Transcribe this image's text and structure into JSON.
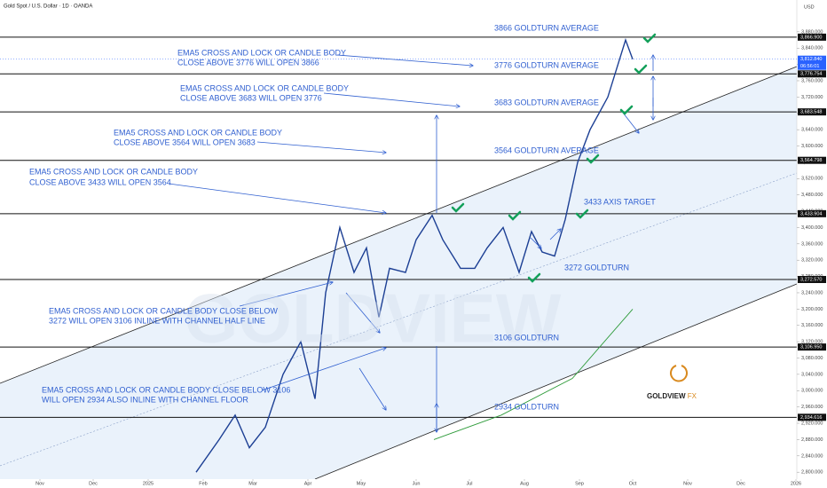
{
  "chart_data": {
    "type": "line",
    "title": "Gold Spot / U.S. Dollar · 1D · OANDA",
    "currency": "USD",
    "xlim": [
      -22.5,
      426.5
    ],
    "xticks": [
      {
        "value": 0,
        "label": "Nov"
      },
      {
        "value": 30,
        "label": "Dec"
      },
      {
        "value": 61,
        "label": "2025"
      },
      {
        "value": 92,
        "label": "Feb"
      },
      {
        "value": 120,
        "label": "Mar"
      },
      {
        "value": 151,
        "label": "Apr"
      },
      {
        "value": 181,
        "label": "May"
      },
      {
        "value": 212,
        "label": "Jun"
      },
      {
        "value": 242,
        "label": "Jul"
      },
      {
        "value": 273,
        "label": "Aug"
      },
      {
        "value": 304,
        "label": "Sep"
      },
      {
        "value": 334,
        "label": "Oct"
      },
      {
        "value": 365,
        "label": "Nov"
      },
      {
        "value": 395,
        "label": "Dec"
      },
      {
        "value": 426,
        "label": "2026"
      }
    ],
    "ylim": [
      2783,
      3958
    ],
    "yticks": [
      {
        "value": 2800,
        "label": "2,800.000"
      },
      {
        "value": 2840,
        "label": "2,840.000"
      },
      {
        "value": 2880,
        "label": "2,880.000"
      },
      {
        "value": 2920,
        "label": "2,920.000"
      },
      {
        "value": 2960,
        "label": "2,960.000"
      },
      {
        "value": 3000,
        "label": "3,000.000"
      },
      {
        "value": 3040,
        "label": "3,040.000"
      },
      {
        "value": 3080,
        "label": "3,080.000"
      },
      {
        "value": 3120,
        "label": "3,120.000"
      },
      {
        "value": 3160,
        "label": "3,160.000"
      },
      {
        "value": 3200,
        "label": "3,200.000"
      },
      {
        "value": 3240,
        "label": "3,240.000"
      },
      {
        "value": 3280,
        "label": "3,280.000"
      },
      {
        "value": 3320,
        "label": "3,320.000"
      },
      {
        "value": 3360,
        "label": "3,360.000"
      },
      {
        "value": 3400,
        "label": "3,400.000"
      },
      {
        "value": 3440,
        "label": "3,440.000"
      },
      {
        "value": 3480,
        "label": "3,480.000"
      },
      {
        "value": 3520,
        "label": "3,520.000"
      },
      {
        "value": 3560,
        "label": "3,560.000"
      },
      {
        "value": 3600,
        "label": "3,600.000"
      },
      {
        "value": 3640,
        "label": "3,640.000"
      },
      {
        "value": 3680,
        "label": "3,680.000"
      },
      {
        "value": 3720,
        "label": "3,720.000"
      },
      {
        "value": 3760,
        "label": "3,760.000"
      },
      {
        "value": 3800,
        "label": "3,800.000"
      },
      {
        "value": 3840,
        "label": "3,840.000"
      },
      {
        "value": 3880,
        "label": "3,880.000"
      }
    ],
    "series": [
      {
        "color": "#1c3f94",
        "x": [
          88,
          101,
          110,
          118,
          127,
          137,
          147,
          155,
          161,
          169,
          177,
          184,
          191,
          197,
          206,
          212,
          221,
          227,
          237,
          245,
          252,
          261,
          270,
          277,
          283,
          290,
          296,
          303,
          310,
          320,
          330,
          334
        ],
        "values": [
          2800,
          2880,
          2940,
          2860,
          2910,
          3040,
          3120,
          2980,
          3240,
          3400,
          3290,
          3350,
          3180,
          3300,
          3290,
          3370,
          3430,
          3370,
          3300,
          3300,
          3350,
          3400,
          3290,
          3390,
          3340,
          3330,
          3420,
          3560,
          3640,
          3720,
          3860,
          3812.84
        ]
      },
      {
        "color": "#2e9b3a",
        "x": [
          222,
          260,
          300,
          334
        ],
        "values": [
          2880,
          2940,
          3030,
          3200
        ]
      }
    ],
    "levels": [
      {
        "value": 3866.9,
        "label": "3,866.900"
      },
      {
        "value": 3776.754,
        "label": "3,776.754"
      },
      {
        "value": 3683.548,
        "label": "3,683.548"
      },
      {
        "value": 3564.798,
        "label": "3,564.798"
      },
      {
        "value": 3433.904,
        "label": "3,433.904"
      },
      {
        "value": 3272.57,
        "label": "3,272.570"
      },
      {
        "value": 3106.95,
        "label": "3,106.950"
      },
      {
        "value": 2934.616,
        "label": "2,934.616"
      }
    ],
    "last_price": {
      "value": 3812.84,
      "label": "3,812.840",
      "countdown": "06:56:01"
    },
    "annotations": [
      "3866 GOLDTURN AVERAGE",
      "3776 GOLDTURN AVERAGE",
      "3683 GOLDTURN AVERAGE",
      "3564 GOLDTURN AVERAGE",
      "3433 AXIS TARGET",
      "3272 GOLDTURN",
      "3106 GOLDTURN",
      "2934 GOLDTURN",
      "EMA5 CROSS AND LOCK OR CANDLE BODY",
      "CLOSE ABOVE 3776 WILL OPEN 3866",
      "EMA5 CROSS AND LOCK OR CANDLE BODY",
      "CLOSE ABOVE 3683 WILL OPEN 3776",
      "EMA5 CROSS AND LOCK OR CANDLE BODY",
      "CLOSE ABOVE 3564 WILL OPEN 3683",
      "EMA5 CROSS AND LOCK OR CANDLE BODY",
      "CLOSE ABOVE 3433 WILL OPEN 3564",
      "EMA5 CROSS AND LOCK OR CANDLE BODY CLOSE BELOW",
      "3272 WILL OPEN 3106 INLINE WITH CHANNEL HALF LINE",
      "EMA5 CROSS AND LOCK OR CANDLE BODY CLOSE BELOW 3106",
      "WILL OPEN 2934 ALSO INLINE WITH CHANNEL FLOOR"
    ],
    "logo": {
      "name": "GOLDVIEW",
      "suffix": "FX"
    }
  }
}
